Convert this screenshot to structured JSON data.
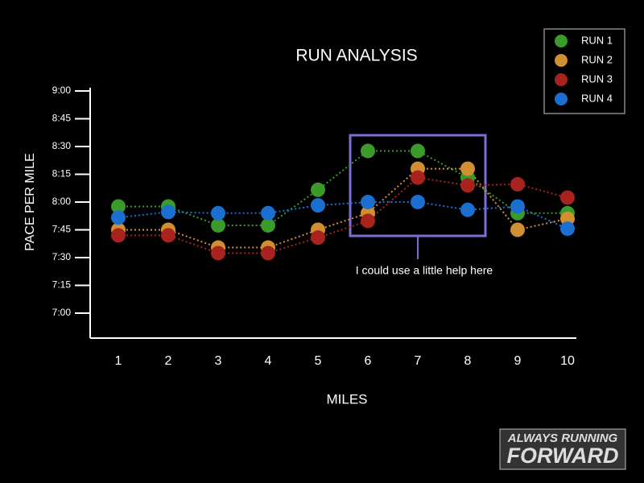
{
  "chart_data": {
    "type": "line",
    "title": "RUN ANALYSIS",
    "xlabel": "MILES",
    "ylabel": "PACE PER MILE",
    "categories": [
      "1",
      "2",
      "3",
      "4",
      "5",
      "6",
      "7",
      "8",
      "9",
      "10"
    ],
    "series": [
      {
        "name": "RUN 1",
        "color": "#3a9a2a",
        "values": [
          7.96,
          7.96,
          7.79,
          7.79,
          8.11,
          8.46,
          8.46,
          8.22,
          7.9,
          7.9
        ]
      },
      {
        "name": "RUN 2",
        "color": "#d08f30",
        "values": [
          7.75,
          7.75,
          7.59,
          7.59,
          7.75,
          7.9,
          8.3,
          8.3,
          7.75,
          7.85
        ]
      },
      {
        "name": "RUN 3",
        "color": "#a8221e",
        "values": [
          7.7,
          7.7,
          7.54,
          7.54,
          7.68,
          7.83,
          8.22,
          8.15,
          8.16,
          8.04
        ]
      },
      {
        "name": "RUN 4",
        "color": "#1a6fd0",
        "values": [
          7.86,
          7.91,
          7.9,
          7.9,
          7.97,
          8.0,
          8.0,
          7.93,
          7.96,
          7.76
        ]
      }
    ],
    "ylim": [
      6.775,
      9.0
    ],
    "yticks": [
      {
        "value": 7.0,
        "label": "7:00"
      },
      {
        "value": 7.25,
        "label": "7:15"
      },
      {
        "value": 7.5,
        "label": "7:30"
      },
      {
        "value": 7.75,
        "label": "7:45"
      },
      {
        "value": 8.0,
        "label": "8:00"
      },
      {
        "value": 8.25,
        "label": "8:15"
      },
      {
        "value": 8.5,
        "label": "8:30"
      },
      {
        "value": 8.75,
        "label": "8:45"
      },
      {
        "value": 9.0,
        "label": "9:00"
      }
    ],
    "legend": "top-right",
    "annotation": "I could use a little help here"
  },
  "logo": [
    "ALWAYS RUNNING",
    "FORWARD"
  ]
}
